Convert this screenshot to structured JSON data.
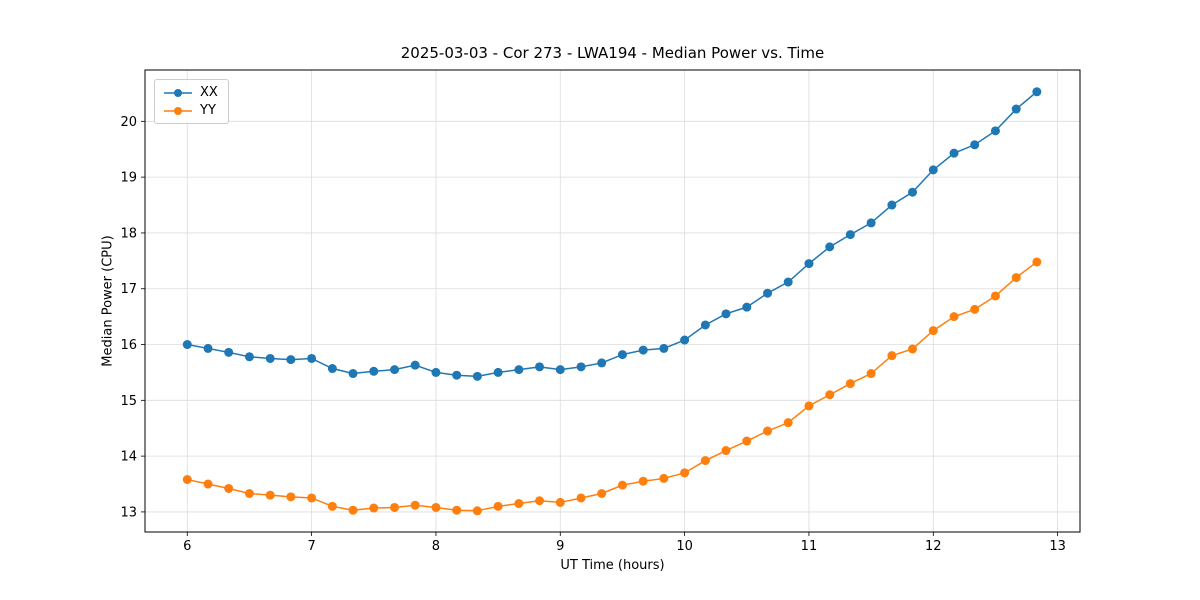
{
  "chart_data": {
    "type": "line",
    "title": "2025-03-03 - Cor 273 - LWA194 - Median Power vs. Time",
    "xlabel": "UT Time (hours)",
    "ylabel": "Median Power (CPU)",
    "xlim": [
      5.66,
      13.18
    ],
    "ylim": [
      12.64,
      20.92
    ],
    "xticks": [
      6,
      7,
      8,
      9,
      10,
      11,
      12,
      13
    ],
    "yticks": [
      13,
      14,
      15,
      16,
      17,
      18,
      19,
      20
    ],
    "grid": true,
    "legend_position": "upper left",
    "x": [
      6.0,
      6.167,
      6.333,
      6.5,
      6.667,
      6.833,
      7.0,
      7.167,
      7.333,
      7.5,
      7.667,
      7.833,
      8.0,
      8.167,
      8.333,
      8.5,
      8.667,
      8.833,
      9.0,
      9.167,
      9.333,
      9.5,
      9.667,
      9.833,
      10.0,
      10.167,
      10.333,
      10.5,
      10.667,
      10.833,
      11.0,
      11.167,
      11.333,
      11.5,
      11.667,
      11.833,
      12.0,
      12.167,
      12.333,
      12.5,
      12.667,
      12.833
    ],
    "series": [
      {
        "name": "XX",
        "color": "#1f77b4",
        "values": [
          16.0,
          15.93,
          15.86,
          15.78,
          15.75,
          15.73,
          15.75,
          15.57,
          15.48,
          15.52,
          15.55,
          15.63,
          15.5,
          15.45,
          15.43,
          15.5,
          15.55,
          15.6,
          15.55,
          15.6,
          15.67,
          15.82,
          15.9,
          15.93,
          16.08,
          16.35,
          16.55,
          16.67,
          16.92,
          17.12,
          17.45,
          17.75,
          17.97,
          18.18,
          18.5,
          18.73,
          19.13,
          19.43,
          19.58,
          19.83,
          20.22,
          20.53
        ]
      },
      {
        "name": "YY",
        "color": "#ff7f0e",
        "values": [
          13.58,
          13.5,
          13.42,
          13.33,
          13.3,
          13.27,
          13.25,
          13.1,
          13.03,
          13.07,
          13.08,
          13.12,
          13.08,
          13.03,
          13.02,
          13.1,
          13.15,
          13.2,
          13.17,
          13.25,
          13.33,
          13.48,
          13.55,
          13.6,
          13.7,
          13.92,
          14.1,
          14.27,
          14.45,
          14.6,
          14.9,
          15.1,
          15.3,
          15.48,
          15.8,
          15.92,
          16.25,
          16.5,
          16.63,
          16.87,
          17.2,
          17.48
        ]
      }
    ]
  }
}
